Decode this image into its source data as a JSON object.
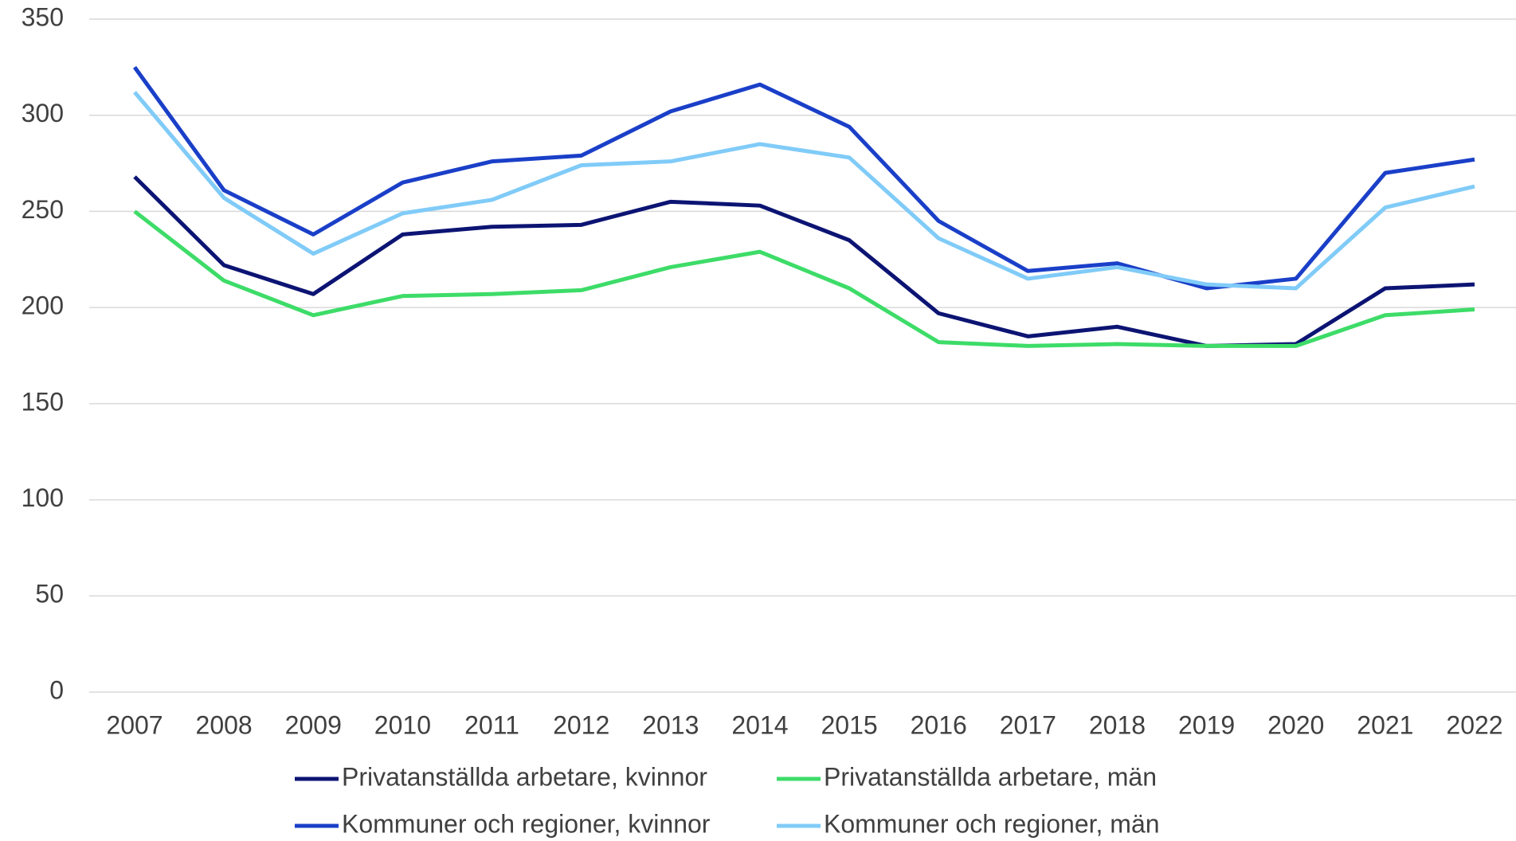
{
  "chart_data": {
    "type": "line",
    "x": [
      "2007",
      "2008",
      "2009",
      "2010",
      "2011",
      "2012",
      "2013",
      "2014",
      "2015",
      "2016",
      "2017",
      "2018",
      "2019",
      "2020",
      "2021",
      "2022"
    ],
    "series": [
      {
        "name": "Privatanställda arbetare, kvinnor",
        "color": "#0c1473",
        "values": [
          268,
          222,
          207,
          238,
          242,
          243,
          255,
          253,
          235,
          197,
          185,
          190,
          180,
          181,
          210,
          212
        ]
      },
      {
        "name": "Privatanställda arbetare, män",
        "color": "#3ddc68",
        "values": [
          250,
          214,
          196,
          206,
          207,
          209,
          221,
          229,
          210,
          182,
          180,
          181,
          180,
          180,
          196,
          199
        ]
      },
      {
        "name": "Kommuner och regioner, kvinnor",
        "color": "#1a3fc8",
        "values": [
          325,
          261,
          238,
          265,
          276,
          279,
          302,
          316,
          294,
          245,
          219,
          223,
          210,
          215,
          270,
          277
        ]
      },
      {
        "name": "Kommuner och regioner, män",
        "color": "#80cbf8",
        "values": [
          312,
          257,
          228,
          249,
          256,
          274,
          276,
          285,
          278,
          236,
          215,
          221,
          212,
          210,
          252,
          263
        ]
      }
    ],
    "ylim": [
      0,
      350
    ],
    "yticks": [
      0,
      50,
      100,
      150,
      200,
      250,
      300,
      350
    ],
    "grid": true
  }
}
